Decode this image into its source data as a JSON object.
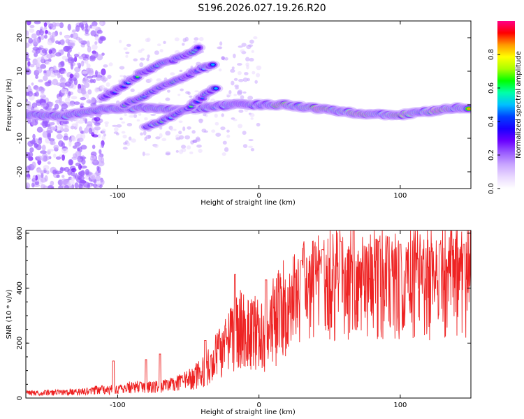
{
  "chart_data": [
    {
      "type": "heatmap",
      "title": "S196.2026.027.19.26.R20",
      "xlabel": "Height of straight line (km)",
      "ylabel": "Frequency (Hz)",
      "xlim": [
        -165,
        150
      ],
      "ylim": [
        -25,
        25
      ],
      "xticks": [
        -100,
        0,
        100
      ],
      "yticks": [
        -20,
        -10,
        0,
        10,
        20
      ],
      "colorbar": {
        "label": "Normalized spectral amplitude",
        "range": [
          0,
          1
        ],
        "ticks": [
          "0.0",
          "0.2",
          "0.4",
          "0.6",
          "0.8"
        ],
        "colors": [
          "#ffffff",
          "#e9d8ff",
          "#c9a6ff",
          "#9a5cff",
          "#6a00ff",
          "#1a00ff",
          "#0040ff",
          "#00c0ff",
          "#00ffaa",
          "#00ff00",
          "#aaff00",
          "#ffff00",
          "#ff9900",
          "#ff0000",
          "#ff0088"
        ]
      },
      "ridges": [
        {
          "name": "main",
          "points": [
            [
              -165,
              -3
            ],
            [
              -140,
              -3.5
            ],
            [
              -120,
              -2
            ],
            [
              -100,
              -1
            ],
            [
              -80,
              -1
            ],
            [
              -60,
              -1.5
            ],
            [
              -40,
              -1
            ],
            [
              -20,
              0
            ],
            [
              0,
              0
            ],
            [
              20,
              0
            ],
            [
              40,
              -1
            ],
            [
              60,
              -2
            ],
            [
              80,
              -3
            ],
            [
              100,
              -3
            ],
            [
              120,
              -2
            ],
            [
              140,
              -1
            ],
            [
              150,
              -1
            ]
          ]
        },
        {
          "name": "upper-branch",
          "points": [
            [
              -110,
              2
            ],
            [
              -95,
              6
            ],
            [
              -85,
              9
            ],
            [
              -70,
              12
            ],
            [
              -50,
              15
            ],
            [
              -42,
              17
            ]
          ]
        },
        {
          "name": "middle-branch",
          "points": [
            [
              -95,
              0
            ],
            [
              -80,
              3
            ],
            [
              -65,
              6
            ],
            [
              -50,
              9
            ],
            [
              -40,
              11
            ],
            [
              -32,
              12
            ]
          ]
        },
        {
          "name": "lower-branch",
          "points": [
            [
              -80,
              -7
            ],
            [
              -65,
              -4
            ],
            [
              -50,
              -1
            ],
            [
              -38,
              3
            ],
            [
              -30,
              5
            ]
          ]
        }
      ]
    },
    {
      "type": "line",
      "xlabel": "Height of straight line (km)",
      "ylabel": "SNR (10 * v/v)",
      "xlim": [
        -165,
        150
      ],
      "ylim": [
        0,
        610
      ],
      "xticks": [
        -100,
        0,
        100
      ],
      "yticks": [
        0,
        200,
        400,
        600
      ],
      "color": "#ee2222",
      "series": [
        {
          "name": "SNR",
          "x": [
            -165,
            -150,
            -130,
            -115,
            -100,
            -90,
            -80,
            -70,
            -60,
            -50,
            -40,
            -35,
            -30,
            -25,
            -20,
            -15,
            -10,
            -5,
            0,
            5,
            10,
            15,
            20,
            25,
            30,
            40,
            50,
            60,
            70,
            80,
            90,
            100,
            110,
            120,
            130,
            140,
            150
          ],
          "values": [
            18,
            18,
            22,
            28,
            30,
            38,
            40,
            42,
            50,
            65,
            95,
            115,
            150,
            170,
            210,
            240,
            240,
            240,
            215,
            225,
            270,
            300,
            330,
            340,
            350,
            365,
            375,
            380,
            385,
            385,
            380,
            380,
            375,
            380,
            390,
            395,
            395
          ],
          "peaks": [
            [
              -103,
              135
            ],
            [
              -80,
              140
            ],
            [
              -70,
              160
            ],
            [
              -38,
              210
            ],
            [
              -17,
              450
            ],
            [
              5,
              430
            ],
            [
              30,
              500
            ],
            [
              45,
              540
            ],
            [
              58,
              570
            ],
            [
              67,
              615
            ],
            [
              85,
              570
            ],
            [
              100,
              560
            ],
            [
              128,
              560
            ],
            [
              145,
              560
            ]
          ]
        }
      ]
    }
  ]
}
